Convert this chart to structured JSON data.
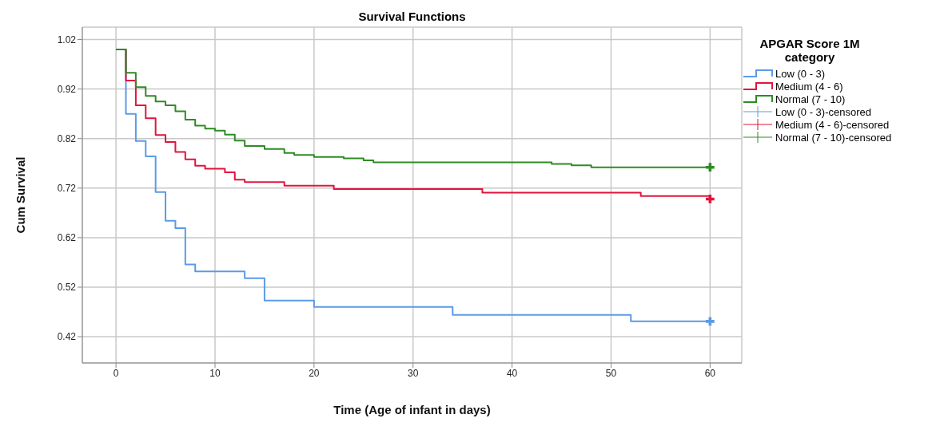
{
  "chart_data": {
    "type": "step",
    "title": "Survival Functions",
    "xlabel": "Time (Age of infant in days)",
    "ylabel": "Cum Survival",
    "legend_title": "APGAR Score 1M category",
    "xlim": [
      -3.4,
      63.2
    ],
    "xticks": [
      0,
      10,
      20,
      30,
      40,
      50,
      60
    ],
    "ylim": [
      0.367,
      1.045
    ],
    "yticks": [
      0.42,
      0.52,
      0.62,
      0.72,
      0.82,
      0.92,
      1.02
    ],
    "grid": true,
    "legend": "right",
    "line_style": "solid",
    "marker": "none",
    "series": [
      {
        "name": "Low (0 - 3)",
        "color": "#5b9be6",
        "x": [
          0,
          1,
          2,
          3,
          4,
          5,
          6,
          7,
          8,
          13,
          15,
          20,
          34,
          52,
          60
        ],
        "values": [
          1.0,
          0.87,
          0.815,
          0.784,
          0.712,
          0.654,
          0.639,
          0.566,
          0.552,
          0.538,
          0.493,
          0.48,
          0.464,
          0.451,
          0.451
        ]
      },
      {
        "name": "Medium (4 - 6)",
        "color": "#e0153d",
        "x": [
          0,
          1,
          2,
          3,
          4,
          5,
          6,
          7,
          8,
          9,
          11,
          12,
          13,
          17,
          22,
          37,
          53,
          60
        ],
        "values": [
          1.0,
          0.937,
          0.887,
          0.861,
          0.827,
          0.813,
          0.793,
          0.778,
          0.765,
          0.759,
          0.752,
          0.737,
          0.732,
          0.725,
          0.718,
          0.711,
          0.704,
          0.704
        ]
      },
      {
        "name": "Normal (7 - 10)",
        "color": "#2e8b24",
        "x": [
          0,
          1,
          2,
          3,
          4,
          5,
          6,
          7,
          8,
          9,
          10,
          11,
          12,
          13,
          15,
          17,
          18,
          20,
          23,
          25,
          26,
          44,
          46,
          48,
          60
        ],
        "values": [
          1.0,
          0.953,
          0.924,
          0.906,
          0.895,
          0.887,
          0.875,
          0.858,
          0.846,
          0.84,
          0.836,
          0.828,
          0.816,
          0.805,
          0.799,
          0.791,
          0.787,
          0.783,
          0.78,
          0.776,
          0.772,
          0.769,
          0.766,
          0.762,
          0.762
        ]
      },
      {
        "name": "Low (0 - 3)-censored",
        "type": "scatter",
        "marker": "cross",
        "color": "#5b9be6",
        "x": [
          60
        ],
        "values": [
          0.451
        ]
      },
      {
        "name": "Medium (4 - 6)-censored",
        "type": "scatter",
        "marker": "cross",
        "color": "#e0153d",
        "x": [
          60
        ],
        "values": [
          0.698
        ]
      },
      {
        "name": "Normal (7 - 10)-censored",
        "type": "scatter",
        "marker": "cross",
        "color": "#2e8b24",
        "x": [
          60
        ],
        "values": [
          0.762
        ]
      }
    ]
  }
}
